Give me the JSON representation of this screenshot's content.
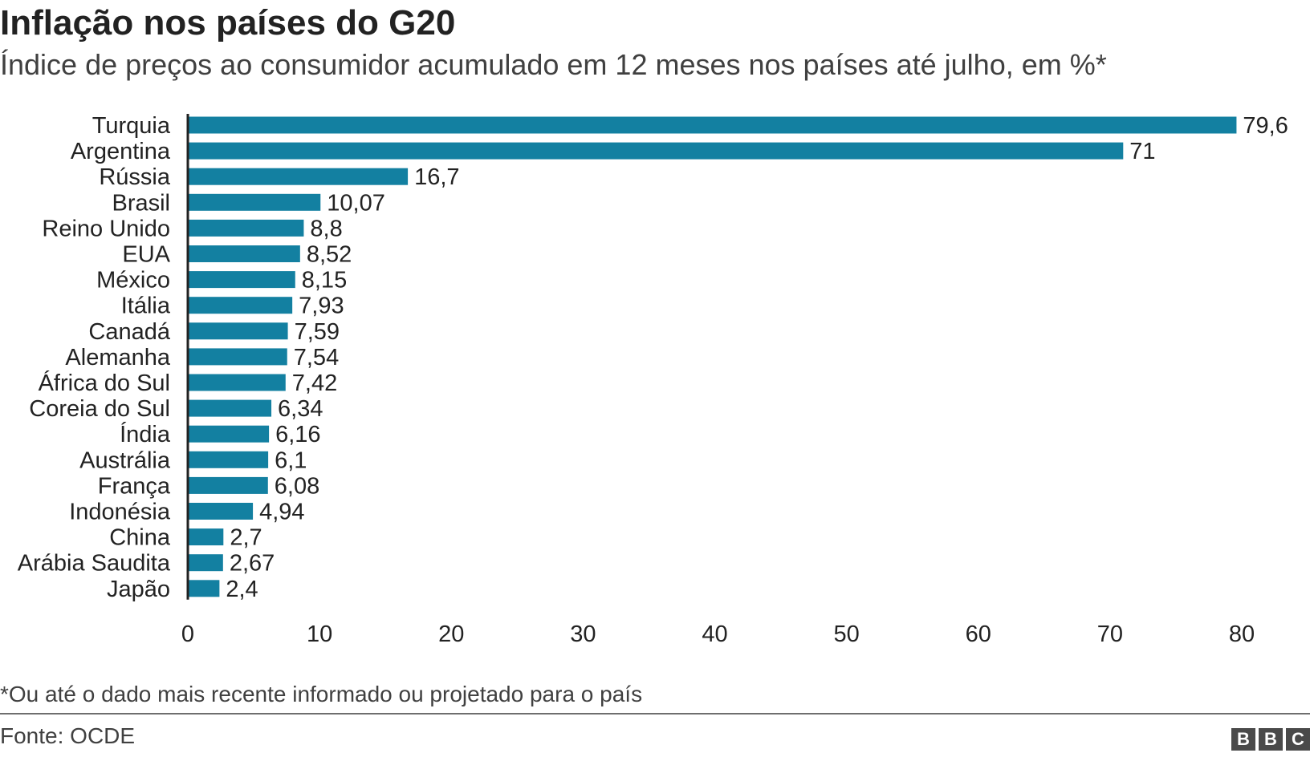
{
  "header": {
    "title": "Inflação nos países do G20",
    "subtitle": "Índice de preços ao consumidor acumulado em 12 meses nos países até julho, em %*"
  },
  "chart_data": {
    "type": "bar",
    "orientation": "horizontal",
    "categories": [
      "Turquia",
      "Argentina",
      "Rússia",
      "Brasil",
      "Reino Unido",
      "EUA",
      "México",
      "Itália",
      "Canadá",
      "Alemanha",
      "África do Sul",
      "Coreia do Sul",
      "Índia",
      "Austrália",
      "França",
      "Indonésia",
      "China",
      "Arábia Saudita",
      "Japão"
    ],
    "values": [
      79.6,
      71,
      16.7,
      10.07,
      8.8,
      8.52,
      8.15,
      7.93,
      7.59,
      7.54,
      7.42,
      6.34,
      6.16,
      6.1,
      6.08,
      4.94,
      2.7,
      2.67,
      2.4
    ],
    "value_labels": [
      "79,6",
      "71",
      "16,7",
      "10,07",
      "8,8",
      "8,52",
      "8,15",
      "7,93",
      "7,59",
      "7,54",
      "7,42",
      "6,34",
      "6,16",
      "6,1",
      "6,08",
      "4,94",
      "2,7",
      "2,67",
      "2,4"
    ],
    "xlim": [
      0,
      80
    ],
    "xticks": [
      0,
      10,
      20,
      30,
      40,
      50,
      60,
      70,
      80
    ],
    "grid": false,
    "bar_color": "#1380a1",
    "axis_color": "#222222"
  },
  "footer": {
    "footnote": "*Ou até o dado mais recente informado ou projetado para o país",
    "source": "Fonte: OCDE",
    "logo_letters": [
      "B",
      "B",
      "C"
    ]
  }
}
